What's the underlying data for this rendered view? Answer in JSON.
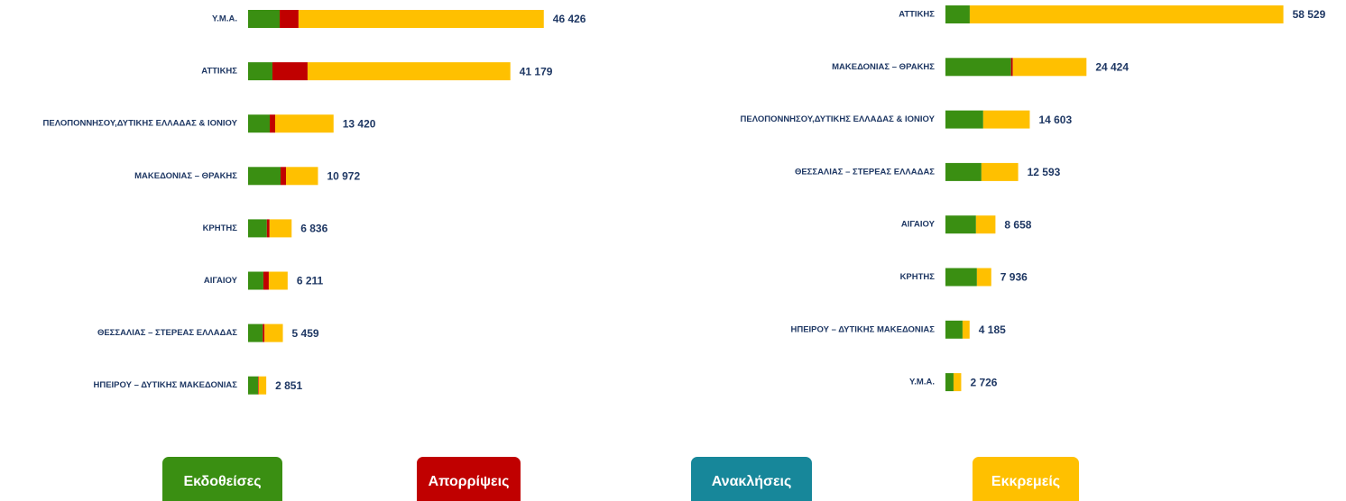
{
  "chart_data": [
    {
      "type": "stacked-bar-h",
      "categories": [
        "Υ.Μ.Α.",
        "ΑΤΤΙΚΗΣ",
        "ΠΕΛΟΠΟΝΝΗΣΟΥ,ΔΥΤΙΚΗΣ ΕΛΛΑΔΑΣ & ΙΟΝΙΟΥ",
        "ΜΑΚΕΔΟΝΙΑΣ – ΘΡΑΚΗΣ",
        "ΚΡΗΤΗΣ",
        "ΑΙΓΑΙΟΥ",
        "ΘΕΣΣΑΛΙΑΣ – ΣΤΕΡΕΑΣ ΕΛΛΑΔΑΣ",
        "ΗΠΕΙΡΟΥ – ΔΥΤΙΚΗΣ ΜΑΚΕΔΟΝΙΑΣ"
      ],
      "series": [
        {
          "name": "Εκδοθείσες",
          "color": "#3a8f12",
          "values": [
            4960,
            3820,
            3400,
            5100,
            2950,
            2400,
            2300,
            1570
          ]
        },
        {
          "name": "Απορρίψεις",
          "color": "#c00000",
          "values": [
            2960,
            5520,
            850,
            850,
            420,
            850,
            280,
            100
          ]
        },
        {
          "name": "Ανακλήσεις",
          "color": "#17879a",
          "values": [
            0,
            0,
            0,
            0,
            0,
            0,
            0,
            0
          ]
        },
        {
          "name": "Εκκρεμείς",
          "color": "#ffc000",
          "values": [
            38506,
            31839,
            9170,
            5022,
            3466,
            2961,
            2879,
            1181
          ]
        }
      ],
      "totals": [
        46426,
        41179,
        13420,
        10972,
        6836,
        6211,
        5459,
        2851
      ],
      "total_labels": [
        "46 426",
        "41 179",
        "13 420",
        "10 972",
        "6 836",
        "6 211",
        "5 459",
        "2 851"
      ],
      "xlim": [
        0,
        50000
      ]
    },
    {
      "type": "stacked-bar-h",
      "categories": [
        "ΑΤΤΙΚΗΣ",
        "ΜΑΚΕΔΟΝΙΑΣ – ΘΡΑΚΗΣ",
        "ΠΕΛΟΠΟΝΝΗΣΟΥ,ΔΥΤΙΚΗΣ ΕΛΛΑΔΑΣ & ΙΟΝΙΟΥ",
        "ΘΕΣΣΑΛΙΑΣ – ΣΤΕΡΕΑΣ ΕΛΛΑΔΑΣ",
        "ΑΙΓΑΙΟΥ",
        "ΚΡΗΤΗΣ",
        "ΗΠΕΙΡΟΥ – ΔΥΤΙΚΗΣ ΜΑΚΕΔΟΝΙΑΣ",
        "Υ.Μ.Α."
      ],
      "series": [
        {
          "color": "#3a8f12",
          "values": [
            4210,
            11360,
            6540,
            6230,
            5290,
            5450,
            2960,
            1400
          ]
        },
        {
          "color": "#c00000",
          "values": [
            0,
            310,
            0,
            0,
            0,
            0,
            0,
            0
          ]
        },
        {
          "color": "#17879a",
          "values": [
            0,
            0,
            0,
            0,
            0,
            0,
            0,
            0
          ]
        },
        {
          "color": "#ffc000",
          "values": [
            54319,
            12754,
            8063,
            6363,
            3368,
            2486,
            1225,
            1326
          ]
        }
      ],
      "totals": [
        58529,
        24424,
        14603,
        12593,
        8658,
        7936,
        4185,
        2726
      ],
      "total_labels": [
        "58 529",
        "24 424",
        "14 603",
        "12 593",
        "8 658",
        "7 936",
        "4 185",
        "2 726"
      ],
      "xlim": [
        0,
        60000
      ]
    }
  ]
}
